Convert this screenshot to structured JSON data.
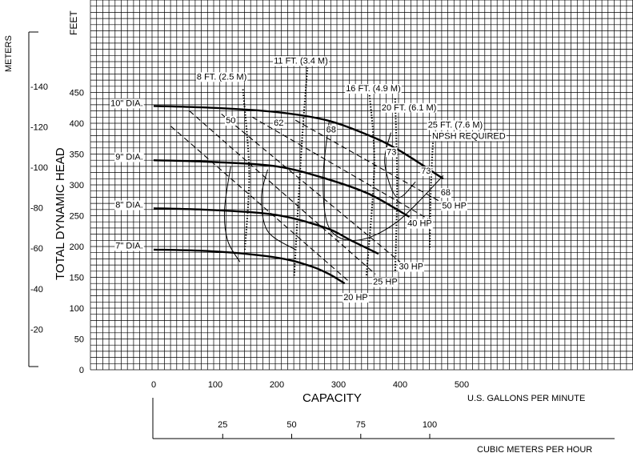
{
  "chart_data": {
    "type": "line",
    "title": "",
    "xlabel": "CAPACITY",
    "x_unit_label": "U.S. GALLONS PER MINUTE",
    "x2_unit_label": "CUBIC METERS PER HOUR",
    "ylabel": "TOTAL DYNAMIC HEAD",
    "y_unit_label": "FEET",
    "y2_unit_label": "METERS",
    "xlim": [
      0,
      500
    ],
    "ylim": [
      0,
      450
    ],
    "grid": true,
    "x_ticks": [
      0,
      100,
      200,
      300,
      400,
      500
    ],
    "y_ticks": [
      0,
      50,
      100,
      150,
      200,
      250,
      300,
      350,
      400,
      450
    ],
    "x2_ticks": [
      25,
      50,
      75,
      100
    ],
    "y2_ticks": [
      20,
      40,
      60,
      80,
      100,
      120,
      140
    ],
    "x2_tick_labels": [
      "25",
      "50",
      "75",
      "100"
    ],
    "y2_tick_labels": [
      "-20",
      "-40",
      "-60",
      "-80",
      "-100",
      "-120",
      "-140"
    ],
    "impeller_curves": [
      {
        "label": "10\" DIA.",
        "x": [
          0,
          100,
          200,
          280,
          350,
          400,
          470
        ],
        "y": [
          428,
          425,
          418,
          405,
          380,
          355,
          310
        ]
      },
      {
        "label": "9\" DIA.",
        "x": [
          0,
          100,
          200,
          280,
          350,
          415
        ],
        "y": [
          340,
          337,
          330,
          310,
          285,
          248
        ]
      },
      {
        "label": "8\" DIA.",
        "x": [
          0,
          100,
          200,
          280,
          320,
          365
        ],
        "y": [
          262,
          259,
          251,
          230,
          210,
          188
        ]
      },
      {
        "label": "7\" DIA.",
        "x": [
          0,
          100,
          200,
          255,
          285,
          310
        ],
        "y": [
          195,
          192,
          182,
          168,
          155,
          140
        ]
      }
    ],
    "efficiency_curves": [
      {
        "label": "50",
        "x": [
          125,
          115,
          120,
          140
        ],
        "y": [
          330,
          260,
          210,
          175
        ]
      },
      {
        "label": "62",
        "x": [
          185,
          175,
          185,
          230
        ],
        "y": [
          325,
          280,
          225,
          195
        ]
      },
      {
        "label": "68",
        "x": [
          285,
          275,
          285,
          330,
          395,
          470
        ],
        "y": [
          405,
          310,
          230,
          210,
          240,
          315
        ]
      },
      {
        "label": "73",
        "x": [
          385,
          375,
          395,
          425
        ],
        "y": [
          385,
          335,
          280,
          305
        ]
      }
    ],
    "efficiency_labels": [
      {
        "text": "50",
        "x": 117,
        "y": 400
      },
      {
        "text": "62",
        "x": 195,
        "y": 396
      },
      {
        "text": "68",
        "x": 280,
        "y": 385
      },
      {
        "text": "73",
        "x": 378,
        "y": 349
      },
      {
        "text": "73",
        "x": 434,
        "y": 318
      },
      {
        "text": "68",
        "x": 466,
        "y": 283
      }
    ],
    "power_lines": [
      {
        "label": "20 HP",
        "x": [
          28,
          315
        ],
        "y": [
          395,
          145
        ]
      },
      {
        "label": "25 HP",
        "x": [
          58,
          360
        ],
        "y": [
          420,
          155
        ]
      },
      {
        "label": "30 HP",
        "x": [
          110,
          400
        ],
        "y": [
          415,
          175
        ]
      },
      {
        "label": "40 HP",
        "x": [
          160,
          445
        ],
        "y": [
          410,
          245
        ]
      },
      {
        "label": "50 HP",
        "x": [
          230,
          470
        ],
        "y": [
          405,
          270
        ]
      }
    ],
    "power_labels": [
      {
        "text": "20 HP",
        "x": 308,
        "y": 113
      },
      {
        "text": "25 HP",
        "x": 356,
        "y": 138
      },
      {
        "text": "30 HP",
        "x": 398,
        "y": 163
      },
      {
        "text": "40 HP",
        "x": 412,
        "y": 233
      },
      {
        "text": "50 HP",
        "x": 468,
        "y": 262
      }
    ],
    "npsh_curves": [
      {
        "label": "8 FT. (2.5 M)",
        "x": [
          145,
          155,
          148
        ],
        "y": [
          455,
          320,
          195
        ]
      },
      {
        "label": "11 FT. (3.4 M)",
        "x": [
          250,
          240,
          228
        ],
        "y": [
          495,
          360,
          152
        ]
      },
      {
        "label": "16 FT. (4.9 M)",
        "x": [
          350,
          358,
          345
        ],
        "y": [
          450,
          330,
          150
        ]
      },
      {
        "label": "20 FT. (6.1 M)",
        "x": [
          392,
          395,
          392
        ],
        "y": [
          440,
          300,
          158
        ]
      },
      {
        "label": "25 FT. (7.6 M)",
        "x": [
          455,
          450,
          448
        ],
        "y": [
          400,
          300,
          195
        ]
      }
    ],
    "npsh_labels": [
      {
        "text": "8 FT. (2.5 M)",
        "x": 70,
        "y": 471
      },
      {
        "text": "11 FT. (3.4 M)",
        "x": 195,
        "y": 497
      },
      {
        "text": "16 FT. (4.9 M)",
        "x": 312,
        "y": 452
      },
      {
        "text": "20 FT. (6.1 M)",
        "x": 370,
        "y": 421
      },
      {
        "text": "25 FT. (7.6 M)",
        "x": 445,
        "y": 393
      },
      {
        "text": "NPSH REQUIRED",
        "x": 452,
        "y": 375
      }
    ],
    "diameter_labels": [
      {
        "text": "10\" DIA.",
        "x": -70,
        "y": 428
      },
      {
        "text": "9\" DIA.",
        "x": -62,
        "y": 341
      },
      {
        "text": "8\" DIA.",
        "x": -62,
        "y": 263
      },
      {
        "text": "7\" DIA.",
        "x": -62,
        "y": 197
      }
    ]
  }
}
